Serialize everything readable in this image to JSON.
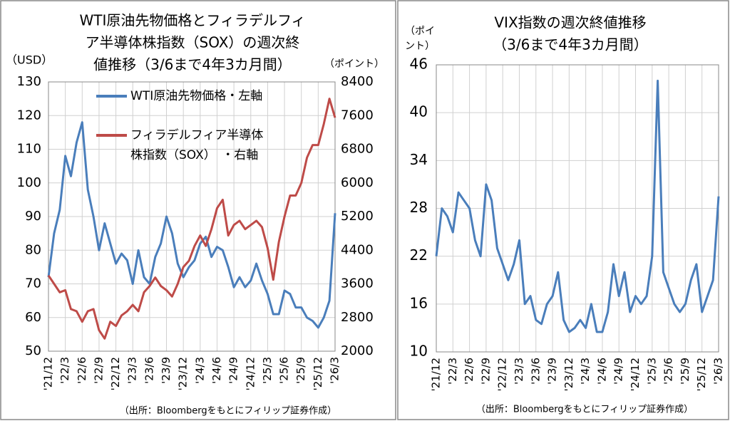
{
  "chart_data": [
    {
      "type": "line",
      "title_lines": [
        "WTI原油先物価格とフィラデルフィ",
        "ア半導体株指数（SOX）の週次終",
        "値推移（3/6まで4年3カ月間）"
      ],
      "y_label": "（USD）",
      "y2_label": "（ポイント）",
      "source": "（出所：Bloombergをもとにフィリップ証券作成）",
      "categories": [
        "'21/12",
        null,
        null,
        "'22/3",
        null,
        null,
        "'22/6",
        null,
        null,
        "'22/9",
        null,
        null,
        "'22/12",
        null,
        null,
        "'23/3",
        null,
        null,
        "'23/6",
        null,
        null,
        "'23/9",
        null,
        null,
        "'23/12",
        null,
        null,
        "'24/3",
        null,
        null,
        "'24/6",
        null,
        null,
        "'24/9",
        null,
        null,
        "'24/12",
        null,
        null,
        "'25/3",
        null,
        null,
        "'25/6",
        null,
        null,
        "'25/9",
        null,
        null,
        "'25/12",
        null,
        null,
        "'26/3"
      ],
      "series": [
        {
          "name": [
            "WTI原油先物価格・左軸"
          ],
          "color": "#4a7ebb",
          "values": [
            72,
            85,
            92,
            108,
            102,
            112,
            118,
            98,
            90,
            80,
            88,
            82,
            76,
            79,
            77,
            70,
            80,
            72,
            70,
            78,
            82,
            90,
            85,
            76,
            72,
            75,
            77,
            82,
            84,
            78,
            81,
            80,
            75,
            69,
            72,
            69,
            71,
            76,
            71,
            67,
            61,
            61,
            68,
            67,
            63,
            63,
            60,
            59,
            57,
            60,
            65,
            91
          ]
        },
        {
          "name": [
            "フィラデルフィア半導体",
            "株指数（SOX）　・右軸"
          ],
          "color": "#be4b48",
          "axis": "y2",
          "values": [
            3800,
            3600,
            3400,
            3450,
            3000,
            2950,
            2700,
            2950,
            3000,
            2500,
            2300,
            2700,
            2600,
            2850,
            2950,
            3100,
            2950,
            3400,
            3550,
            3750,
            3550,
            3450,
            3300,
            3600,
            4000,
            4150,
            4500,
            4750,
            4500,
            4900,
            5400,
            5600,
            4750,
            5000,
            5100,
            4900,
            5000,
            5100,
            4950,
            4450,
            3700,
            4600,
            5200,
            5700,
            5700,
            6000,
            6600,
            6900,
            6900,
            7400,
            8000,
            7550
          ]
        }
      ],
      "ylim": [
        50,
        130
      ],
      "yticks": [
        50,
        60,
        70,
        80,
        90,
        100,
        110,
        120,
        130
      ],
      "y2lim": [
        2000,
        8400
      ],
      "y2ticks": [
        2000,
        2800,
        3600,
        4400,
        5200,
        6000,
        6800,
        7600,
        8400
      ],
      "grid": true
    },
    {
      "type": "line",
      "title_lines": [
        "VIX指数の週次終値推移",
        "（3/6まで4年3カ月間）"
      ],
      "y_label_lines": [
        "（ポイ",
        "ント）"
      ],
      "source": "（出所：Bloombergをもとにフィリップ証券作成）",
      "categories": [
        "'21/12",
        null,
        null,
        "'22/3",
        null,
        null,
        "'22/6",
        null,
        null,
        "'22/9",
        null,
        null,
        "'22/12",
        null,
        null,
        "'23/3",
        null,
        null,
        "'23/6",
        null,
        null,
        "'23/9",
        null,
        null,
        "'23/12",
        null,
        null,
        "'24/3",
        null,
        null,
        "'24/6",
        null,
        null,
        "'24/9",
        null,
        null,
        "'24/12",
        null,
        null,
        "'25/3",
        null,
        null,
        "'25/6",
        null,
        null,
        "'25/9",
        null,
        null,
        "'25/12",
        null,
        null,
        "'26/3"
      ],
      "series": [
        {
          "color": "#4a7ebb",
          "values": [
            22,
            28,
            27,
            25,
            30,
            29,
            28,
            24,
            22,
            31,
            29,
            23,
            21,
            19,
            21,
            24,
            16,
            17,
            14,
            13.5,
            16,
            17,
            20,
            14,
            12.5,
            13,
            14,
            13,
            16,
            12.5,
            12.5,
            15,
            21,
            17,
            20,
            15,
            17,
            16,
            17,
            22,
            44,
            20,
            18,
            16,
            15,
            16,
            19,
            21,
            15,
            17,
            19,
            29.5
          ]
        }
      ],
      "ylim": [
        10,
        46
      ],
      "yticks": [
        10,
        16,
        22,
        28,
        34,
        40,
        46
      ],
      "grid": true
    }
  ]
}
